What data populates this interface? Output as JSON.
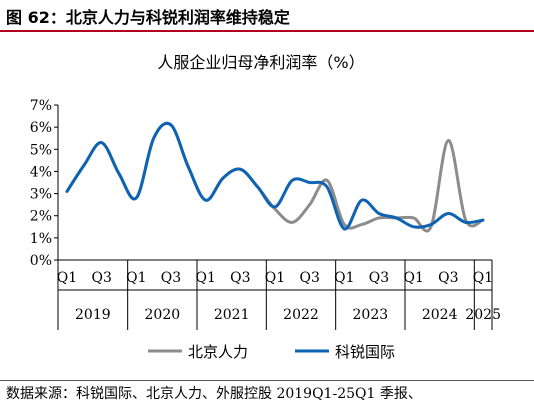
{
  "figure_title": "图 62：北京人力与科锐利润率维持稳定",
  "source_note": "数据来源：科锐国际、北京人力、外服控股 2019Q1-25Q1 季报、",
  "chart_data": {
    "type": "line",
    "title": "人服企业归母净利润率（%）",
    "y_ticks": [
      "0%",
      "1%",
      "2%",
      "3%",
      "4%",
      "5%",
      "6%",
      "7%"
    ],
    "ylim": [
      0,
      7
    ],
    "grid": false,
    "legend_position": "bottom",
    "quarter_labels": [
      "Q1",
      "Q3",
      "Q1",
      "Q3",
      "Q1",
      "Q3",
      "Q1",
      "Q3",
      "Q1",
      "Q3",
      "Q1",
      "Q3",
      "Q1"
    ],
    "years": [
      "2019",
      "2020",
      "2021",
      "2022",
      "2023",
      "2024",
      "2025"
    ],
    "categories": [
      "2019Q1",
      "2019Q2",
      "2019Q3",
      "2019Q4",
      "2020Q1",
      "2020Q2",
      "2020Q3",
      "2020Q4",
      "2021Q1",
      "2021Q2",
      "2021Q3",
      "2021Q4",
      "2022Q1",
      "2022Q2",
      "2022Q3",
      "2022Q4",
      "2023Q1",
      "2023Q2",
      "2023Q3",
      "2023Q4",
      "2024Q1",
      "2024Q2",
      "2024Q3",
      "2024Q4",
      "2025Q1"
    ],
    "series": [
      {
        "name": "北京人力",
        "color": "#8c8c8c",
        "values": [
          3.1,
          4.3,
          5.3,
          3.9,
          2.8,
          5.5,
          6.1,
          4.2,
          2.7,
          3.7,
          4.1,
          3.3,
          2.3,
          1.7,
          2.5,
          3.6,
          1.6,
          1.6,
          1.9,
          1.9,
          1.9,
          1.5,
          5.4,
          1.8,
          1.8
        ]
      },
      {
        "name": "科锐国际",
        "color": "#0e63b3",
        "values": [
          3.1,
          4.3,
          5.3,
          3.9,
          2.8,
          5.5,
          6.1,
          4.2,
          2.7,
          3.7,
          4.1,
          3.3,
          2.4,
          3.6,
          3.5,
          3.3,
          1.4,
          2.7,
          2.1,
          1.9,
          1.5,
          1.6,
          2.1,
          1.7,
          1.8
        ]
      }
    ]
  }
}
